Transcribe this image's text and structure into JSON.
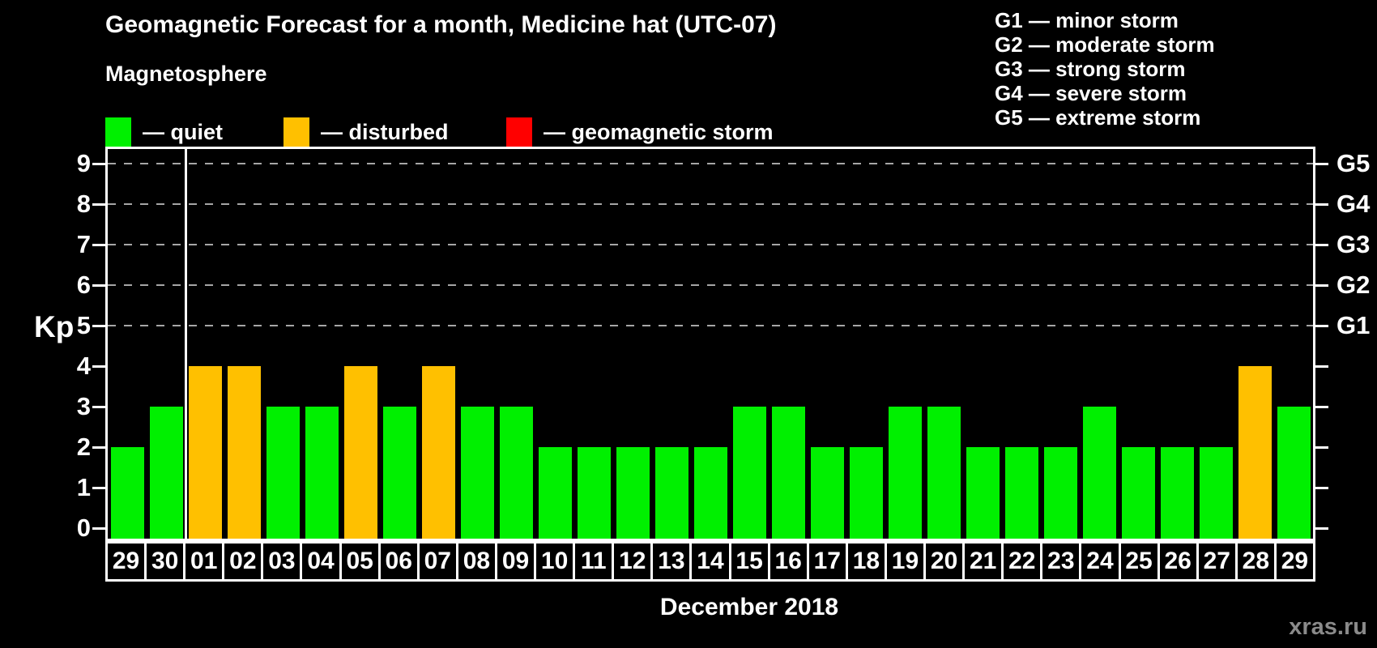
{
  "title": "Geomagnetic Forecast for a month, Medicine hat (UTC-07)",
  "subtitle": "Magnetosphere",
  "legend": {
    "items": [
      {
        "name": "quiet",
        "label": "— quiet",
        "color": "#00f000"
      },
      {
        "name": "disturbed",
        "label": "— disturbed",
        "color": "#ffc000"
      },
      {
        "name": "storm",
        "label": "— geomagnetic storm",
        "color": "#ff0000"
      }
    ]
  },
  "g_legend": [
    "G1 — minor storm",
    "G2 — moderate storm",
    "G3 — strong storm",
    "G4 — severe storm",
    "G5 — extreme storm"
  ],
  "watermark": "xras.ru",
  "chart_data": {
    "type": "bar",
    "title": "Geomagnetic Forecast for a month, Medicine hat (UTC-07)",
    "xlabel": "December 2018",
    "ylabel": "Kp",
    "ylim": [
      0,
      9.4
    ],
    "yticks": [
      0,
      1,
      2,
      3,
      4,
      5,
      6,
      7,
      8,
      9
    ],
    "gridlines_at": [
      5,
      6,
      7,
      8,
      9
    ],
    "grid": "dashed horizontal at Kp 5-9",
    "right_axis_labels": [
      {
        "kp": 5,
        "label": "G1"
      },
      {
        "kp": 6,
        "label": "G2"
      },
      {
        "kp": 7,
        "label": "G3"
      },
      {
        "kp": 8,
        "label": "G4"
      },
      {
        "kp": 9,
        "label": "G5"
      }
    ],
    "month_separator_after_index": 1,
    "categories": [
      "29",
      "30",
      "01",
      "02",
      "03",
      "04",
      "05",
      "06",
      "07",
      "08",
      "09",
      "10",
      "11",
      "12",
      "13",
      "14",
      "15",
      "16",
      "17",
      "18",
      "19",
      "20",
      "21",
      "22",
      "23",
      "24",
      "25",
      "26",
      "27",
      "28",
      "29"
    ],
    "values": [
      2,
      3,
      4,
      4,
      3,
      3,
      4,
      3,
      4,
      3,
      3,
      2,
      2,
      2,
      2,
      2,
      3,
      3,
      2,
      2,
      3,
      3,
      2,
      2,
      2,
      3,
      2,
      2,
      2,
      4,
      3
    ],
    "statuses": [
      "quiet",
      "quiet",
      "disturbed",
      "disturbed",
      "quiet",
      "quiet",
      "disturbed",
      "quiet",
      "disturbed",
      "quiet",
      "quiet",
      "quiet",
      "quiet",
      "quiet",
      "quiet",
      "quiet",
      "quiet",
      "quiet",
      "quiet",
      "quiet",
      "quiet",
      "quiet",
      "quiet",
      "quiet",
      "quiet",
      "quiet",
      "quiet",
      "quiet",
      "quiet",
      "disturbed",
      "quiet"
    ],
    "colors": {
      "quiet": "#00f000",
      "disturbed": "#ffc000",
      "storm": "#ff0000"
    }
  }
}
